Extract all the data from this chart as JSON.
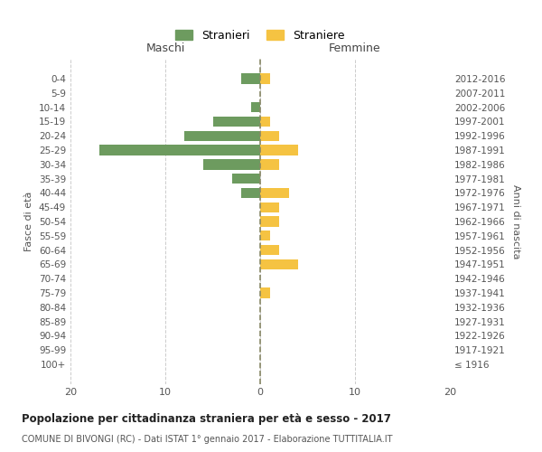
{
  "age_groups": [
    "0-4",
    "5-9",
    "10-14",
    "15-19",
    "20-24",
    "25-29",
    "30-34",
    "35-39",
    "40-44",
    "45-49",
    "50-54",
    "55-59",
    "60-64",
    "65-69",
    "70-74",
    "75-79",
    "80-84",
    "85-89",
    "90-94",
    "95-99",
    "100+"
  ],
  "birth_years": [
    "2012-2016",
    "2007-2011",
    "2002-2006",
    "1997-2001",
    "1992-1996",
    "1987-1991",
    "1982-1986",
    "1977-1981",
    "1972-1976",
    "1967-1971",
    "1962-1966",
    "1957-1961",
    "1952-1956",
    "1947-1951",
    "1942-1946",
    "1937-1941",
    "1932-1936",
    "1927-1931",
    "1922-1926",
    "1917-1921",
    "≤ 1916"
  ],
  "maschi": [
    2,
    0,
    1,
    5,
    8,
    17,
    6,
    3,
    2,
    0,
    0,
    0,
    0,
    0,
    0,
    0,
    0,
    0,
    0,
    0,
    0
  ],
  "femmine": [
    1,
    0,
    0,
    1,
    2,
    4,
    2,
    0,
    3,
    2,
    2,
    1,
    2,
    4,
    0,
    1,
    0,
    0,
    0,
    0,
    0
  ],
  "maschi_color": "#6d9b5f",
  "femmine_color": "#f5c342",
  "title_main": "Popolazione per cittadinanza straniera per età e sesso - 2017",
  "title_sub": "COMUNE DI BIVONGI (RC) - Dati ISTAT 1° gennaio 2017 - Elaborazione TUTTITALIA.IT",
  "ylabel_left": "Fasce di età",
  "ylabel_right": "Anni di nascita",
  "xlabel_maschi": "Maschi",
  "xlabel_femmine": "Femmine",
  "legend_stranieri": "Stranieri",
  "legend_straniere": "Straniere",
  "xlim": 20,
  "background_color": "#ffffff",
  "grid_color": "#cccccc"
}
